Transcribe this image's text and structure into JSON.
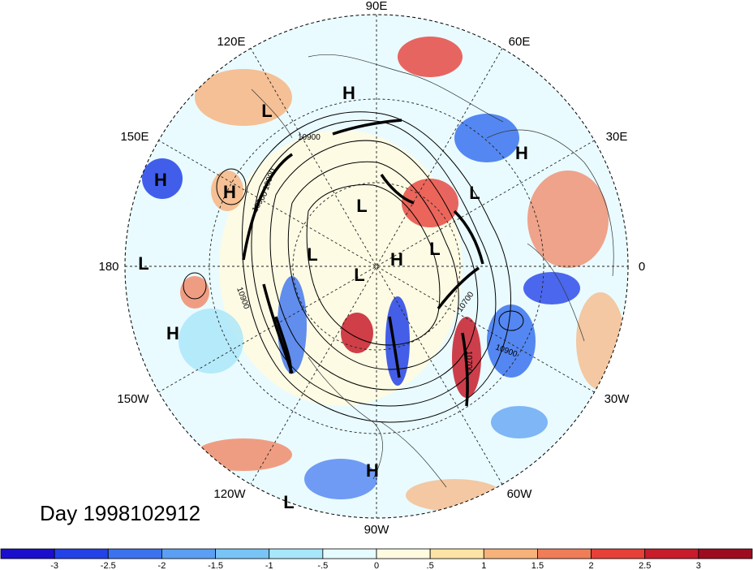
{
  "title": "Day 1998102912",
  "longitude_labels": [
    "90E",
    "60E",
    "30E",
    "0",
    "30W",
    "60W",
    "90W",
    "120W",
    "150W",
    "180",
    "150E",
    "120E"
  ],
  "pressure_centers": [
    {
      "type": "H",
      "lon": "110E"
    },
    {
      "type": "L",
      "lon": "125E"
    },
    {
      "type": "H",
      "lon": "40E"
    },
    {
      "type": "H",
      "lon": "160E"
    },
    {
      "type": "H",
      "lon": "150E"
    },
    {
      "type": "L",
      "lon": "85E"
    },
    {
      "type": "L",
      "lon": "20E"
    },
    {
      "type": "L",
      "lon": "180"
    },
    {
      "type": "L",
      "lon": "130E"
    },
    {
      "type": "L",
      "lon": "90W"
    },
    {
      "type": "H",
      "lon": "60W"
    },
    {
      "type": "L",
      "lon": "30E"
    },
    {
      "type": "H",
      "lon": "165W"
    },
    {
      "type": "H",
      "lon": "90W"
    },
    {
      "type": "L",
      "lon": "110W"
    }
  ],
  "contour_labels": [
    "10900",
    "10900",
    "10900",
    "10900",
    "10700",
    "10900",
    "10700"
  ],
  "colorbar": {
    "ticks": [
      "-3",
      "-2.5",
      "-2",
      "-1.5",
      "-1",
      "-.5",
      "0",
      ".5",
      "1",
      "1.5",
      "2",
      "2.5",
      "3"
    ],
    "colors": [
      "#1a0fcc",
      "#2342e8",
      "#3a72ef",
      "#5a9ff3",
      "#78c4f6",
      "#a8e6fa",
      "#e6fbff",
      "#fffbe1",
      "#fde4a6",
      "#f7b27a",
      "#f07d58",
      "#e64038",
      "#c81c2b",
      "#9e0b1f"
    ]
  }
}
